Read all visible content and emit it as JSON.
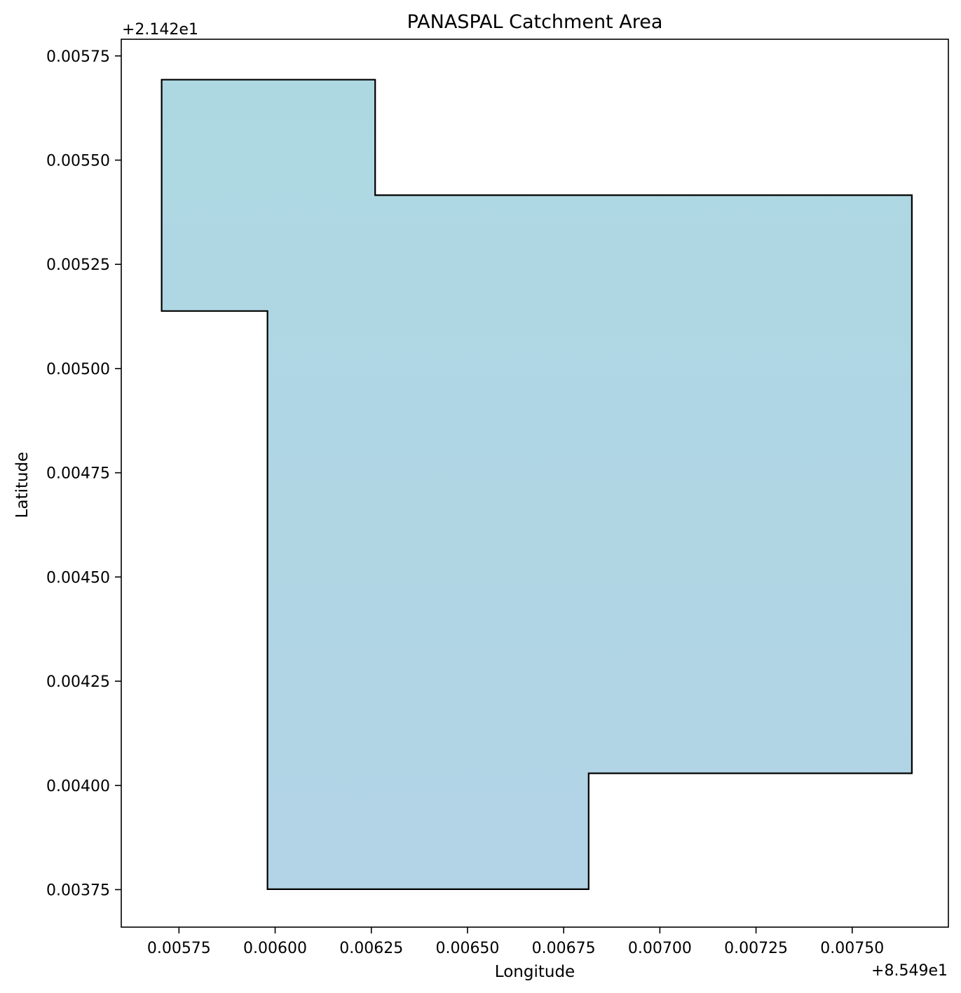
{
  "chart_data": {
    "type": "area",
    "title": "PANASPAL Catchment Area",
    "xlabel": "Longitude",
    "ylabel": "Latitude",
    "x_offset_label": "+8.549e1",
    "y_offset_label": "+2.142e1",
    "xlim": [
      0.0056,
      0.00775
    ],
    "ylim": [
      0.00366,
      0.00579
    ],
    "x_ticks": [
      {
        "value": 0.00575,
        "label": "0.00575"
      },
      {
        "value": 0.006,
        "label": "0.00600"
      },
      {
        "value": 0.00625,
        "label": "0.00625"
      },
      {
        "value": 0.0065,
        "label": "0.00650"
      },
      {
        "value": 0.00675,
        "label": "0.00675"
      },
      {
        "value": 0.007,
        "label": "0.00700"
      },
      {
        "value": 0.00725,
        "label": "0.00725"
      },
      {
        "value": 0.0075,
        "label": "0.00750"
      }
    ],
    "y_ticks": [
      {
        "value": 0.00375,
        "label": "0.00375"
      },
      {
        "value": 0.004,
        "label": "0.00400"
      },
      {
        "value": 0.00425,
        "label": "0.00425"
      },
      {
        "value": 0.0045,
        "label": "0.00450"
      },
      {
        "value": 0.00475,
        "label": "0.00475"
      },
      {
        "value": 0.005,
        "label": "0.00500"
      },
      {
        "value": 0.00525,
        "label": "0.00525"
      },
      {
        "value": 0.0055,
        "label": "0.00550"
      },
      {
        "value": 0.00575,
        "label": "0.00575"
      }
    ],
    "polygon": [
      [
        0.005705,
        0.005693
      ],
      [
        0.00626,
        0.005693
      ],
      [
        0.00626,
        0.005416
      ],
      [
        0.007655,
        0.005416
      ],
      [
        0.007655,
        0.004029
      ],
      [
        0.006815,
        0.004029
      ],
      [
        0.006815,
        0.003751
      ],
      [
        0.00598,
        0.003751
      ],
      [
        0.00598,
        0.005138
      ],
      [
        0.005705,
        0.005138
      ]
    ],
    "fill_color_top": "#add8e2",
    "fill_color_bottom": "#b2d4e6",
    "edge_color": "#000000",
    "grid": false,
    "legend": "none"
  }
}
